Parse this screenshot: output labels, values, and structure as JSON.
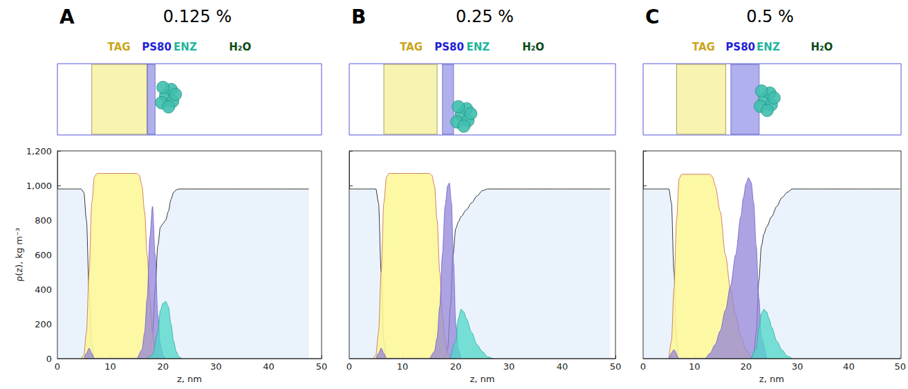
{
  "chart_data": [
    {
      "type": "area",
      "letter": "A",
      "title": "0.125 %",
      "x_label": "z, nm",
      "y_label": "ρ(z), kg m⁻³",
      "xlim": [
        0,
        50
      ],
      "xticks": [
        0,
        10,
        20,
        30,
        40,
        50
      ],
      "ylim": [
        0,
        1200
      ],
      "yticks": [
        0,
        200,
        400,
        600,
        800,
        1000,
        1200
      ],
      "series": [
        {
          "name": "TAG",
          "color": "#fcf79a",
          "x": [
            4.5,
            5,
            5.5,
            6,
            6.5,
            7,
            7.5,
            8,
            15,
            15.5,
            16,
            16.5,
            17,
            17.5,
            18,
            18.5,
            19,
            19.5
          ],
          "values": [
            0,
            20,
            150,
            500,
            900,
            1050,
            1070,
            1070,
            1070,
            1060,
            1000,
            850,
            600,
            350,
            150,
            50,
            10,
            0
          ]
        },
        {
          "name": "PS80",
          "color": "#9384d8",
          "x": [
            5,
            5.5,
            6,
            6.5,
            7,
            15,
            16,
            16.5,
            17,
            17.5,
            18,
            18.5,
            19,
            19.5,
            20,
            20.5
          ],
          "values": [
            0,
            30,
            60,
            30,
            0,
            0,
            50,
            150,
            350,
            700,
            880,
            600,
            250,
            80,
            20,
            0
          ]
        },
        {
          "name": "ENZ",
          "color": "#4fd8c8",
          "x": [
            17,
            18,
            19,
            19.5,
            20,
            20.5,
            21,
            21.5,
            22,
            22.5,
            23,
            23.5
          ],
          "values": [
            0,
            20,
            150,
            280,
            320,
            330,
            300,
            200,
            100,
            40,
            10,
            0
          ]
        },
        {
          "name": "H₂O",
          "color": "#eaf3fc",
          "x": [
            0,
            4.5,
            5,
            5.5,
            6,
            6.5,
            7,
            17,
            17.5,
            18,
            18.5,
            19,
            19.5,
            20,
            20.5,
            21,
            21.5,
            22,
            22.5,
            23,
            47.6
          ],
          "values": [
            980,
            980,
            960,
            800,
            400,
            80,
            0,
            0,
            30,
            150,
            400,
            650,
            760,
            780,
            800,
            850,
            920,
            960,
            975,
            980,
            980
          ]
        }
      ]
    },
    {
      "type": "area",
      "letter": "B",
      "title": "0.25 %",
      "x_label": "z, nm",
      "tick_labels": "x",
      "xlim": [
        0,
        50
      ],
      "xticks": [
        0,
        10,
        20,
        30,
        40,
        50
      ],
      "ylim": [
        0,
        1200
      ],
      "yticks": [
        0,
        200,
        400,
        600,
        800,
        1000,
        1200
      ],
      "series": [
        {
          "name": "TAG",
          "color": "#fcf79a",
          "x": [
            4.5,
            5,
            5.5,
            6,
            6.5,
            7,
            7.5,
            8,
            15,
            15.5,
            16,
            16.5,
            17,
            17.5,
            18,
            18.5,
            19
          ],
          "values": [
            0,
            20,
            150,
            500,
            900,
            1050,
            1070,
            1070,
            1070,
            1060,
            1000,
            800,
            500,
            250,
            100,
            30,
            0
          ]
        },
        {
          "name": "PS80",
          "color": "#9384d8",
          "x": [
            5,
            5.5,
            6,
            6.5,
            7,
            15,
            16,
            16.5,
            17,
            17.5,
            18,
            18.5,
            18.8,
            19.2,
            19.6,
            20,
            20.5,
            21
          ],
          "values": [
            0,
            30,
            60,
            30,
            0,
            0,
            40,
            120,
            300,
            600,
            880,
            1000,
            1015,
            900,
            550,
            200,
            50,
            0
          ]
        },
        {
          "name": "ENZ",
          "color": "#4fd8c8",
          "x": [
            19,
            20,
            20.5,
            21,
            21.5,
            22,
            23,
            24,
            25,
            26,
            27
          ],
          "values": [
            0,
            100,
            230,
            285,
            270,
            230,
            150,
            80,
            40,
            10,
            0
          ]
        },
        {
          "name": "H₂O",
          "color": "#eaf3fc",
          "x": [
            0,
            5,
            5.5,
            6,
            6.5,
            7,
            17.5,
            18,
            18.5,
            19,
            19.5,
            20,
            20.5,
            21,
            22,
            23,
            24,
            25,
            26,
            49
          ],
          "values": [
            980,
            980,
            900,
            500,
            100,
            0,
            0,
            10,
            60,
            300,
            600,
            750,
            790,
            820,
            860,
            900,
            940,
            970,
            980,
            980
          ]
        }
      ]
    },
    {
      "type": "area",
      "letter": "C",
      "title": "0.5 %",
      "x_label": "z, nm",
      "tick_labels": "x",
      "xlim": [
        0,
        50
      ],
      "xticks": [
        0,
        10,
        20,
        30,
        40,
        50
      ],
      "ylim": [
        0,
        1200
      ],
      "yticks": [
        0,
        200,
        400,
        600,
        800,
        1000,
        1200
      ],
      "series": [
        {
          "name": "TAG",
          "color": "#fcf79a",
          "x": [
            5,
            5.5,
            6,
            6.5,
            7,
            7.5,
            8,
            13,
            13.5,
            14,
            15,
            16,
            17,
            18,
            19,
            20,
            21,
            22
          ],
          "values": [
            0,
            100,
            400,
            800,
            1040,
            1065,
            1065,
            1065,
            1050,
            1000,
            850,
            600,
            400,
            250,
            130,
            50,
            10,
            0
          ]
        },
        {
          "name": "PS80",
          "color": "#9384d8",
          "x": [
            5,
            6,
            7,
            12,
            13,
            14,
            15,
            16,
            17,
            18,
            19,
            19.5,
            20,
            20.5,
            21,
            21.5,
            22,
            22.5,
            23,
            24
          ],
          "values": [
            0,
            50,
            0,
            0,
            30,
            80,
            160,
            280,
            420,
            600,
            820,
            930,
            1010,
            1045,
            1020,
            900,
            650,
            350,
            120,
            0
          ]
        },
        {
          "name": "ENZ",
          "color": "#4fd8c8",
          "x": [
            21,
            22,
            22.5,
            23,
            23.5,
            24,
            24.5,
            25,
            26,
            27,
            28,
            29
          ],
          "values": [
            0,
            60,
            180,
            260,
            285,
            270,
            230,
            180,
            100,
            50,
            15,
            0
          ]
        },
        {
          "name": "H₂O",
          "color": "#eaf3fc",
          "x": [
            0,
            5,
            5.5,
            6,
            6.5,
            7,
            21,
            21.5,
            22,
            22.5,
            23,
            23.5,
            24,
            25,
            26,
            27,
            28,
            29,
            50
          ],
          "values": [
            980,
            980,
            900,
            500,
            100,
            0,
            0,
            20,
            150,
            450,
            650,
            720,
            760,
            820,
            880,
            930,
            960,
            980,
            980
          ]
        }
      ]
    }
  ]
}
